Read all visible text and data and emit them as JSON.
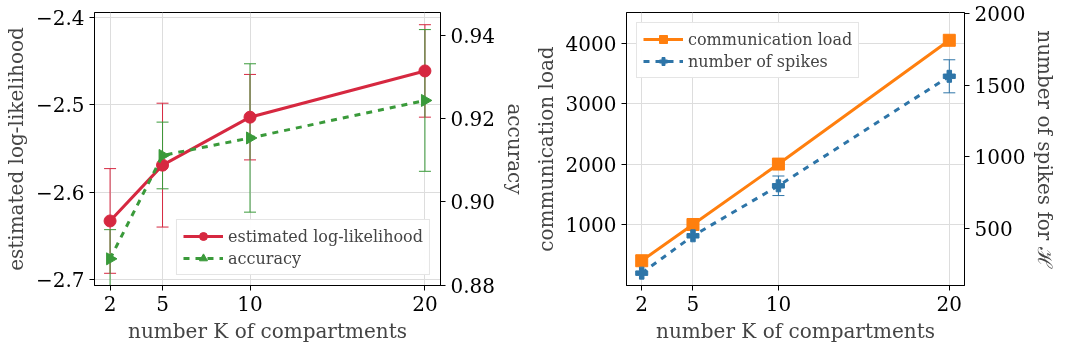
{
  "chart_data": [
    {
      "type": "line",
      "xlabel": "number K of compartments",
      "ylabel": "estimated log-likelihood",
      "y2label": "accuracy",
      "x": [
        2,
        5,
        10,
        20
      ],
      "xlim": [
        1.11,
        20.89
      ],
      "xticks": [
        2,
        5,
        10,
        20
      ],
      "ylim": [
        -2.707,
        -2.394
      ],
      "yticks": [
        {
          "value": -2.7,
          "label": "−2.7"
        },
        {
          "value": -2.6,
          "label": "−2.6"
        },
        {
          "value": -2.5,
          "label": "−2.5"
        },
        {
          "value": -2.4,
          "label": "−2.4"
        }
      ],
      "y2lim": [
        0.8799,
        0.9454
      ],
      "y2ticks": [
        {
          "value": 0.88,
          "label": "0.88"
        },
        {
          "value": 0.9,
          "label": "0.90"
        },
        {
          "value": 0.92,
          "label": "0.92"
        },
        {
          "value": 0.94,
          "label": "0.94"
        }
      ],
      "grid": true,
      "legend": "bottom right",
      "series": [
        {
          "name": "estimated log-likelihood",
          "color": "#d62840",
          "values": [
            -2.633,
            -2.569,
            -2.514,
            -2.461
          ],
          "errors": [
            0.06,
            0.071,
            0.049,
            0.053
          ],
          "marker": "circle",
          "line_style": "solid"
        },
        {
          "name": "accuracy",
          "color": "#3a9a3a",
          "values": [
            0.8863,
            0.9111,
            0.9153,
            0.9243
          ],
          "errors": [
            0.007,
            0.008,
            0.0178,
            0.017
          ],
          "marker": "triangle",
          "line_style": "dashed",
          "axis": "y2"
        }
      ]
    },
    {
      "type": "line",
      "xlabel": "number K of compartments",
      "ylabel": "communication load",
      "y2label": "number of spikes for ℋ",
      "x": [
        2,
        5,
        10,
        20
      ],
      "xlim": [
        1.11,
        20.89
      ],
      "xticks": [
        2,
        5,
        10,
        20
      ],
      "ylim": [
        -10,
        4510
      ],
      "yticks": [
        1000,
        2000,
        3000,
        4000
      ],
      "y2lim": [
        105,
        2005
      ],
      "y2ticks": [
        500,
        1000,
        1500,
        2000
      ],
      "grid": true,
      "legend": "top left",
      "series": [
        {
          "name": "communication load",
          "color": "#ff7f0e",
          "values": [
            400,
            1000,
            2000,
            4050
          ],
          "marker": "square",
          "line_style": "solid"
        },
        {
          "name": "number of spikes",
          "color": "#2e75a8",
          "values": [
            191,
            451,
            799,
            1561
          ],
          "errors": [
            null,
            null,
            68,
            115
          ],
          "marker": "cross",
          "line_style": "dashed",
          "axis": "y2"
        }
      ]
    }
  ]
}
